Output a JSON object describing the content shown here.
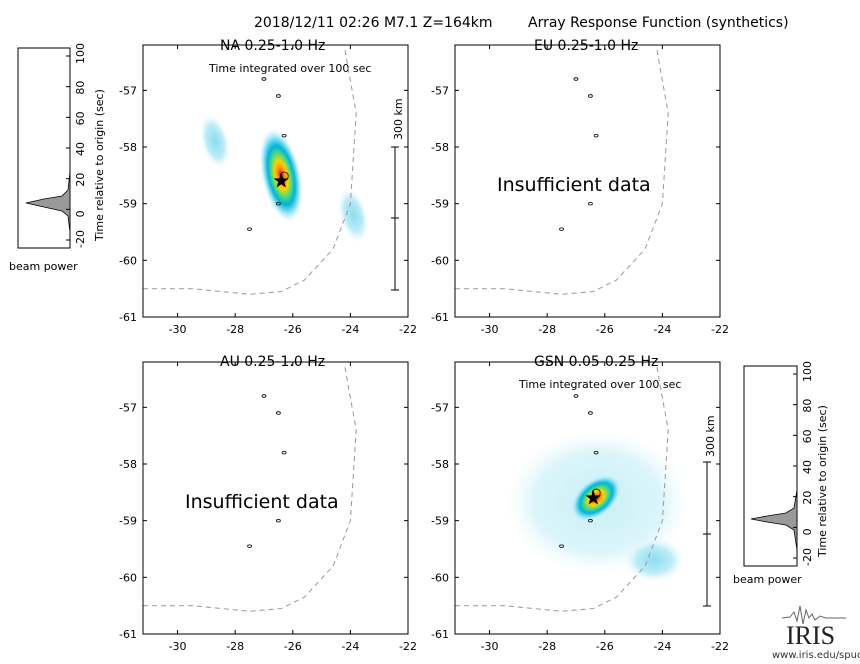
{
  "header": {
    "event": "2018/12/11 02:26  M7.1  Z=164km",
    "product": "Array Response Function (synthetics)"
  },
  "beam_panels": [
    {
      "id": "left",
      "label": "beam power",
      "ylabel": "Time relative to origin (sec)",
      "yticks": [
        "-20",
        "0",
        "20",
        "40",
        "60",
        "80",
        "100"
      ]
    },
    {
      "id": "right",
      "label": "beam power",
      "ylabel": "Time relative to origin (sec)",
      "yticks": [
        "-20",
        "0",
        "20",
        "40",
        "60",
        "80",
        "100"
      ]
    }
  ],
  "colors": {
    "peak": "#e00000",
    "high": "#ffcc00",
    "mid": "#44dd88",
    "low": "#00aadd",
    "outer": "#bfeff7",
    "coast": "#999999",
    "frame": "#000000",
    "beam_fill": "#999999"
  },
  "chart_data": [
    {
      "type": "heatmap",
      "title": "NA  0.25-1.0 Hz",
      "note": "Time integrated over 100 sec",
      "status": "",
      "scale_label": "300 km",
      "xlabel": "",
      "ylabel": "",
      "xlim": [
        -31.2,
        -22
      ],
      "ylim": [
        -61,
        -56.2
      ],
      "xticks": [
        -30,
        -28,
        -26,
        -24,
        -22
      ],
      "yticks": [
        -57,
        -58,
        -59,
        -60,
        -61
      ],
      "grid": false,
      "epicenter": {
        "lon": -26.4,
        "lat": -58.6
      },
      "peak": {
        "lon": -26.4,
        "lat": -58.5
      },
      "sidelobes": [
        {
          "lon": -28.7,
          "lat": -57.9
        },
        {
          "lon": -23.9,
          "lat": -59.2
        }
      ]
    },
    {
      "type": "heatmap",
      "title": "EU  0.25-1.0 Hz",
      "note": "",
      "status": "Insufficient data",
      "scale_label": "",
      "xlabel": "",
      "ylabel": "",
      "xlim": [
        -31.2,
        -22
      ],
      "ylim": [
        -61,
        -56.2
      ],
      "xticks": [
        -30,
        -28,
        -26,
        -24,
        -22
      ],
      "yticks": [
        -57,
        -58,
        -59,
        -60,
        -61
      ],
      "grid": false,
      "epicenter": null,
      "peak": null,
      "sidelobes": []
    },
    {
      "type": "heatmap",
      "title": "AU  0.25-1.0 Hz",
      "note": "",
      "status": "Insufficient data",
      "scale_label": "",
      "xlabel": "",
      "ylabel": "",
      "xlim": [
        -31.2,
        -22
      ],
      "ylim": [
        -61,
        -56.2
      ],
      "xticks": [
        -30,
        -28,
        -26,
        -24,
        -22
      ],
      "yticks": [
        -57,
        -58,
        -59,
        -60,
        -61
      ],
      "grid": false,
      "epicenter": null,
      "peak": null,
      "sidelobes": []
    },
    {
      "type": "heatmap",
      "title": "GSN  0.05-0.25 Hz",
      "note": "Time integrated over 100 sec",
      "status": "",
      "scale_label": "300 km",
      "xlabel": "",
      "ylabel": "",
      "xlim": [
        -31.2,
        -22
      ],
      "ylim": [
        -61,
        -56.2
      ],
      "xticks": [
        -30,
        -28,
        -26,
        -24,
        -22
      ],
      "yticks": [
        -57,
        -58,
        -59,
        -60,
        -61
      ],
      "grid": false,
      "epicenter": {
        "lon": -26.4,
        "lat": -58.6
      },
      "peak": {
        "lon": -26.3,
        "lat": -58.6
      },
      "sidelobes": []
    }
  ],
  "footer": {
    "logo": "IRIS",
    "url": "www.iris.edu/spud"
  }
}
